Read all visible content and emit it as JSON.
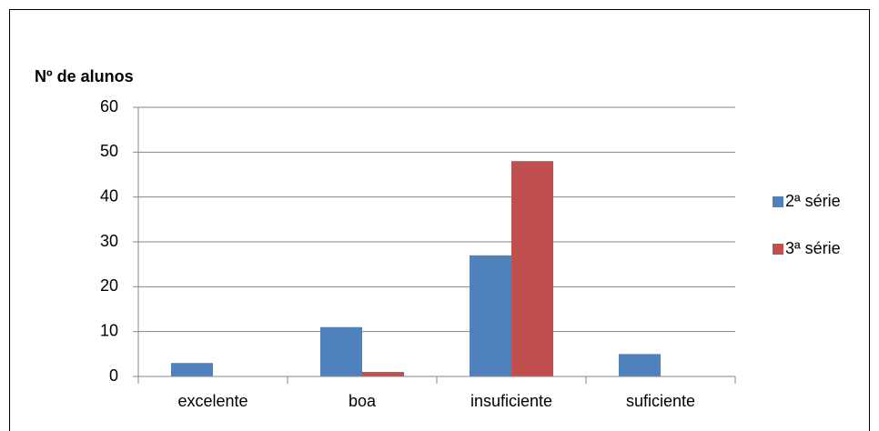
{
  "chart_data": {
    "type": "bar",
    "y_label": "Nº de alunos",
    "categories": [
      "excelente",
      "boa",
      "insuficiente",
      "suficiente"
    ],
    "series": [
      {
        "name": "2ª série",
        "color": "#4f81bd",
        "values": [
          3,
          11,
          27,
          5
        ]
      },
      {
        "name": "3ª série",
        "color": "#c0504d",
        "values": [
          0,
          1,
          48,
          0
        ]
      }
    ],
    "ylim": [
      0,
      60
    ],
    "yticks": [
      0,
      10,
      20,
      30,
      40,
      50,
      60
    ],
    "grid": true,
    "legend": "right"
  }
}
